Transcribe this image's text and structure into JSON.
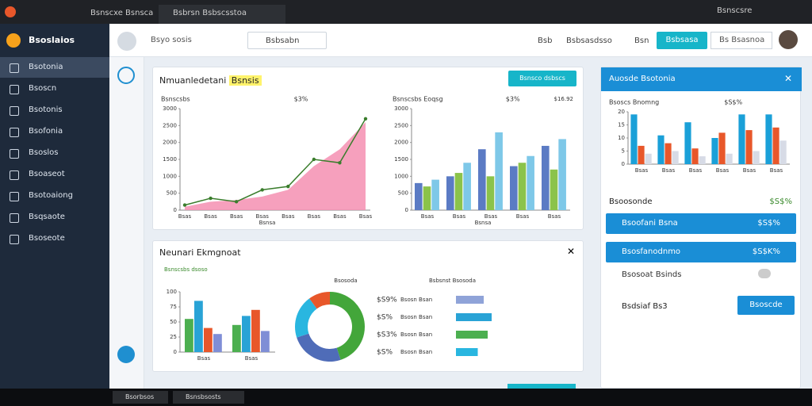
{
  "browser": {
    "tabs": [
      "Bsnscxe Bsnsca",
      "Bsbrsn Bsbscsstoa"
    ],
    "profile": "Bsnscsre"
  },
  "header": {
    "brand": "Bsoslaios",
    "search": "Bsyo sosis",
    "dropdown": "Bsbsabn",
    "links": [
      "Bsb",
      "Bsbsasdsso",
      "Bsn"
    ],
    "button": "Bsbsasa",
    "account": "Bs Bsasnoa"
  },
  "sidebar": [
    "Bsotonia",
    "Bsoscn",
    "Bsotonis",
    "Bsofonia",
    "Bsoslos",
    "Bsoaseot",
    "Bsotoaiong",
    "Bsqsaote",
    "Bsoseote"
  ],
  "overview": {
    "title": "Nmuanledetani",
    "tag": "Bsnsis",
    "button": "Bsnsco dsbscs",
    "trend": {
      "type": "line",
      "title": "Bsnscsbs",
      "badge": "$3%",
      "xlabel": "Bsnsa",
      "categories": [
        "Bsas",
        "Bsas",
        "Bsas",
        "Bsas",
        "Bsas",
        "Bsas",
        "Bsas",
        "Bsas"
      ],
      "ylim": [
        0,
        3000
      ],
      "yticks": [
        0,
        500,
        1000,
        1500,
        2000,
        2500,
        3000
      ],
      "series": [
        {
          "color": "#f48fb1",
          "fill": true,
          "values": [
            100,
            250,
            300,
            400,
            600,
            1300,
            1800,
            2600
          ]
        },
        {
          "color": "#3a7d2c",
          "values": [
            150,
            350,
            250,
            600,
            700,
            1500,
            1400,
            2700
          ]
        }
      ]
    },
    "bars": {
      "type": "bar",
      "title": "Bsnscsbs Eoqsg",
      "badge": "$3%",
      "badge2": "$16.92",
      "xlabel": "Bsnsa",
      "categories": [
        "Bsas",
        "Bsas",
        "Bsas",
        "Bsas",
        "Bsas"
      ],
      "ylim": [
        0,
        3000
      ],
      "yticks": [
        0,
        500,
        1000,
        1500,
        2000,
        2500,
        3000
      ],
      "series": [
        {
          "color": "#5b7bc4",
          "values": [
            800,
            1000,
            1800,
            1300,
            1900
          ]
        },
        {
          "color": "#8bc34a",
          "values": [
            700,
            1100,
            1000,
            1400,
            1200
          ]
        },
        {
          "color": "#7ec8e8",
          "values": [
            900,
            1400,
            2300,
            1600,
            2100
          ]
        }
      ]
    }
  },
  "report": {
    "title": "Neunari Ekmgnoat",
    "legend": "Bsnscsbs dsoso",
    "stack": {
      "type": "bar",
      "categories": [
        "Bsas",
        "Bsas"
      ],
      "ylim": [
        0,
        100
      ],
      "yticks": [
        0,
        25,
        50,
        75,
        100
      ],
      "series": [
        {
          "color": "#4caf50",
          "values": [
            55,
            45
          ]
        },
        {
          "color": "#29a3d6",
          "values": [
            85,
            60
          ]
        },
        {
          "color": "#e8572a",
          "values": [
            40,
            70
          ]
        },
        {
          "color": "#7f8ed6",
          "values": [
            30,
            35
          ]
        }
      ]
    },
    "donut": {
      "type": "pie",
      "title": "Bsosoda",
      "values": [
        45,
        25,
        20,
        10
      ],
      "colors": [
        "#43a63a",
        "#4f6cb8",
        "#29b6e0",
        "#e8572a"
      ]
    },
    "list": {
      "title": "Bsbsnst Bsosoda",
      "rows": [
        {
          "pct": "$S9%",
          "label": "Bsosn Bsan",
          "value": 70
        },
        {
          "pct": "$S%",
          "label": "Bsosn Bsan",
          "value": 90
        },
        {
          "pct": "$S3%",
          "label": "Bsosn Bsan",
          "value": 80
        },
        {
          "pct": "$S%",
          "label": "Bsosn Bsan",
          "value": 55
        }
      ]
    }
  },
  "side": {
    "title": "Auosde Bsotonia",
    "chart": {
      "type": "bar",
      "title": "Bsoscs Bnomng",
      "badge": "$S$%",
      "categories": [
        "Bsas",
        "Bsas",
        "Bsas",
        "Bsas",
        "Bsas",
        "Bsas"
      ],
      "ylim": [
        0,
        20
      ],
      "yticks": [
        0,
        5,
        10,
        15,
        20
      ],
      "series": [
        {
          "color": "#1aa0d8",
          "values": [
            19,
            11,
            16,
            10,
            19,
            19
          ]
        },
        {
          "color": "#e8572a",
          "values": [
            7,
            8,
            6,
            12,
            13,
            14
          ]
        },
        {
          "color": "#d7dbe6",
          "values": [
            4,
            5,
            3,
            4,
            5,
            9
          ]
        }
      ]
    },
    "section": "Bsoosonde",
    "section_value": "$S$%",
    "rows": [
      {
        "label": "Bsoofani Bsna",
        "value": "$S$%"
      },
      {
        "label": "Bsosfanodnmo",
        "value": "$S$K%"
      }
    ],
    "toggle": "Bsosoat Bsinds",
    "more": "Bsdsiaf Bs3",
    "button": "Bsoscde"
  },
  "taskbar": [
    "Bsorbsos",
    "Bsnsbsosts"
  ]
}
